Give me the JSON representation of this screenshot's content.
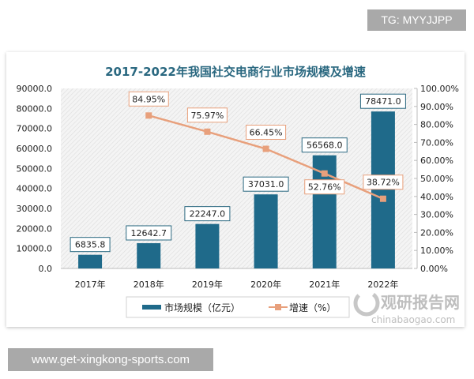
{
  "watermark_top": "TG: MYYJJPP",
  "watermark_bottom": "www.get-xingkong-sports.com",
  "logo": {
    "name": "观研报告网",
    "url": "chinabaogao.com"
  },
  "chart_data": {
    "type": "bar+line",
    "title": "2017-2022年我国社交电商行业市场规模及增速",
    "categories": [
      "2017年",
      "2018年",
      "2019年",
      "2020年",
      "2021年",
      "2022年"
    ],
    "series": [
      {
        "name": "市场规模（亿元）",
        "type": "bar",
        "axis": "left",
        "color": "#1f6a8a",
        "values": [
          6835.8,
          12642.7,
          22247.0,
          37031.0,
          56568.0,
          78471.0
        ],
        "labels": [
          "6835.8",
          "12642.7",
          "22247.0",
          "37031.0",
          "56568.0",
          "78471.0"
        ]
      },
      {
        "name": "增速（%）",
        "type": "line",
        "axis": "right",
        "color": "#e8a07c",
        "values": [
          null,
          84.95,
          75.97,
          66.45,
          52.76,
          38.72
        ],
        "labels": [
          "",
          "84.95%",
          "75.97%",
          "66.45%",
          "52.76%",
          "38.72%"
        ]
      }
    ],
    "y_left": {
      "range": [
        0,
        90000
      ],
      "ticks": [
        "0.0",
        "10000.0",
        "20000.0",
        "30000.0",
        "40000.0",
        "50000.0",
        "60000.0",
        "70000.0",
        "80000.0",
        "90000.0"
      ]
    },
    "y_right": {
      "range": [
        0,
        100
      ],
      "ticks": [
        "0.00%",
        "10.00%",
        "20.00%",
        "30.00%",
        "40.00%",
        "50.00%",
        "60.00%",
        "70.00%",
        "80.00%",
        "90.00%",
        "100.00%"
      ]
    },
    "legend": "bottom",
    "grid": false
  }
}
